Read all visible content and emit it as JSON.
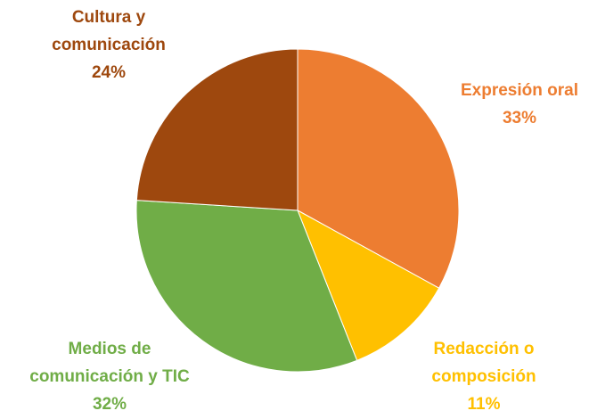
{
  "chart_data": {
    "type": "pie",
    "categories": [
      "Expresión oral",
      "Redacción o composición",
      "Medios de comunicación y TIC",
      "Cultura y comunicación"
    ],
    "values": [
      33,
      11,
      32,
      24
    ],
    "value_labels": [
      "33%",
      "11%",
      "32%",
      "24%"
    ],
    "colors": [
      "#ED7D31",
      "#FFC000",
      "#70AD47",
      "#9E480E"
    ]
  }
}
